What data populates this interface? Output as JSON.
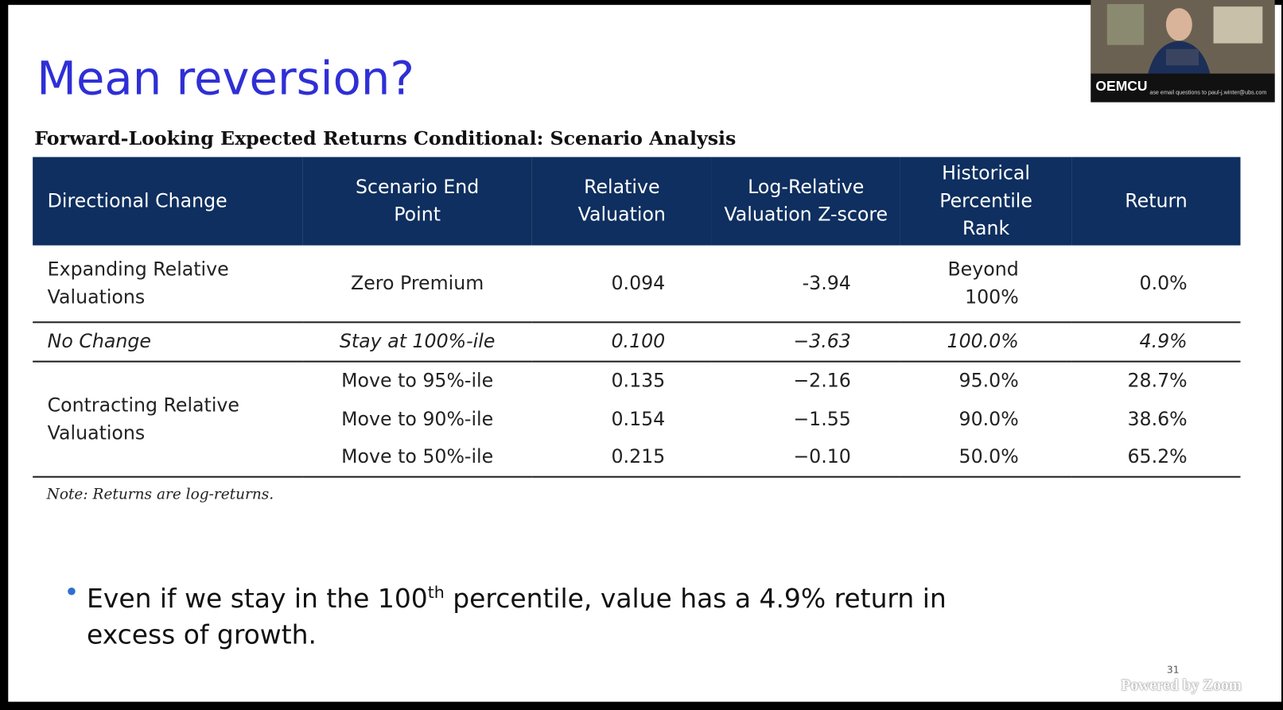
{
  "slide": {
    "title": "Mean reversion?",
    "page_number": "31"
  },
  "table": {
    "caption": "Forward-Looking Expected Returns Conditional: Scenario Analysis",
    "headers": [
      "Directional Change",
      "Scenario End Point",
      "Relative Valuation",
      "Log-Relative Valuation Z-score",
      "Historical Percentile Rank",
      "Return"
    ],
    "groups": [
      {
        "label": "Expanding Relative Valuations",
        "rows": [
          [
            "Zero Premium",
            "0.094",
            "-3.94",
            "Beyond 100%",
            "0.0%"
          ]
        ]
      },
      {
        "label": "No Change",
        "italic": true,
        "rows": [
          [
            "Stay at 100%-ile",
            "0.100",
            "−3.63",
            "100.0%",
            "4.9%"
          ]
        ]
      },
      {
        "label": "Contracting Relative Valuations",
        "rows": [
          [
            "Move to 95%-ile",
            "0.135",
            "−2.16",
            "95.0%",
            "28.7%"
          ],
          [
            "Move to 90%-ile",
            "0.154",
            "−1.55",
            "90.0%",
            "38.6%"
          ],
          [
            "Move to 50%-ile",
            "0.215",
            "−0.10",
            "50.0%",
            "65.2%"
          ]
        ]
      }
    ],
    "note": "Note: Returns are log-returns."
  },
  "bullet": {
    "before": "Even if we stay in the 100",
    "superscript": "th",
    "after": " percentile, value has a 4.9% return in excess of growth."
  },
  "zoom": {
    "participant_label": "OEMCU",
    "banner": "ase email questions to paul-j.winter@ubs.com",
    "watermark": "Powered by Zoom"
  }
}
